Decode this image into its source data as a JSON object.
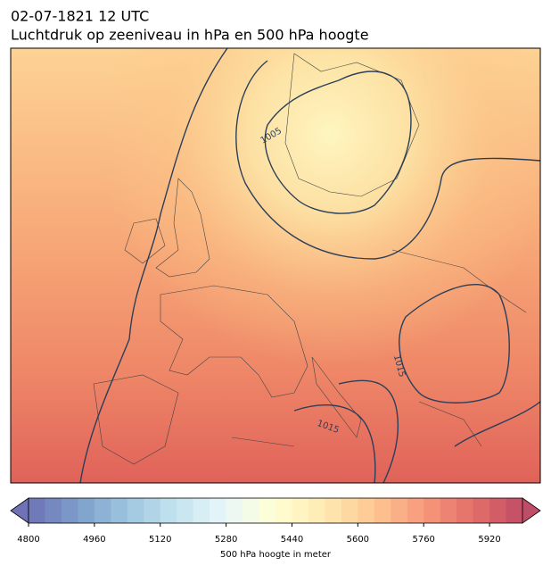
{
  "header": {
    "line1": "02-07-1821 12 UTC",
    "line2": "Luchtdruk op zeeniveau in hPa en 500 hPa hoogte"
  },
  "map": {
    "contour_labels": [
      "1005",
      "1015",
      "1015"
    ]
  },
  "colorbar": {
    "label": "500 hPa hoogte in meter",
    "lim": [
      4800,
      6000
    ],
    "ticks": [
      4800,
      4960,
      5120,
      5280,
      5440,
      5600,
      5760,
      5920
    ]
  }
}
